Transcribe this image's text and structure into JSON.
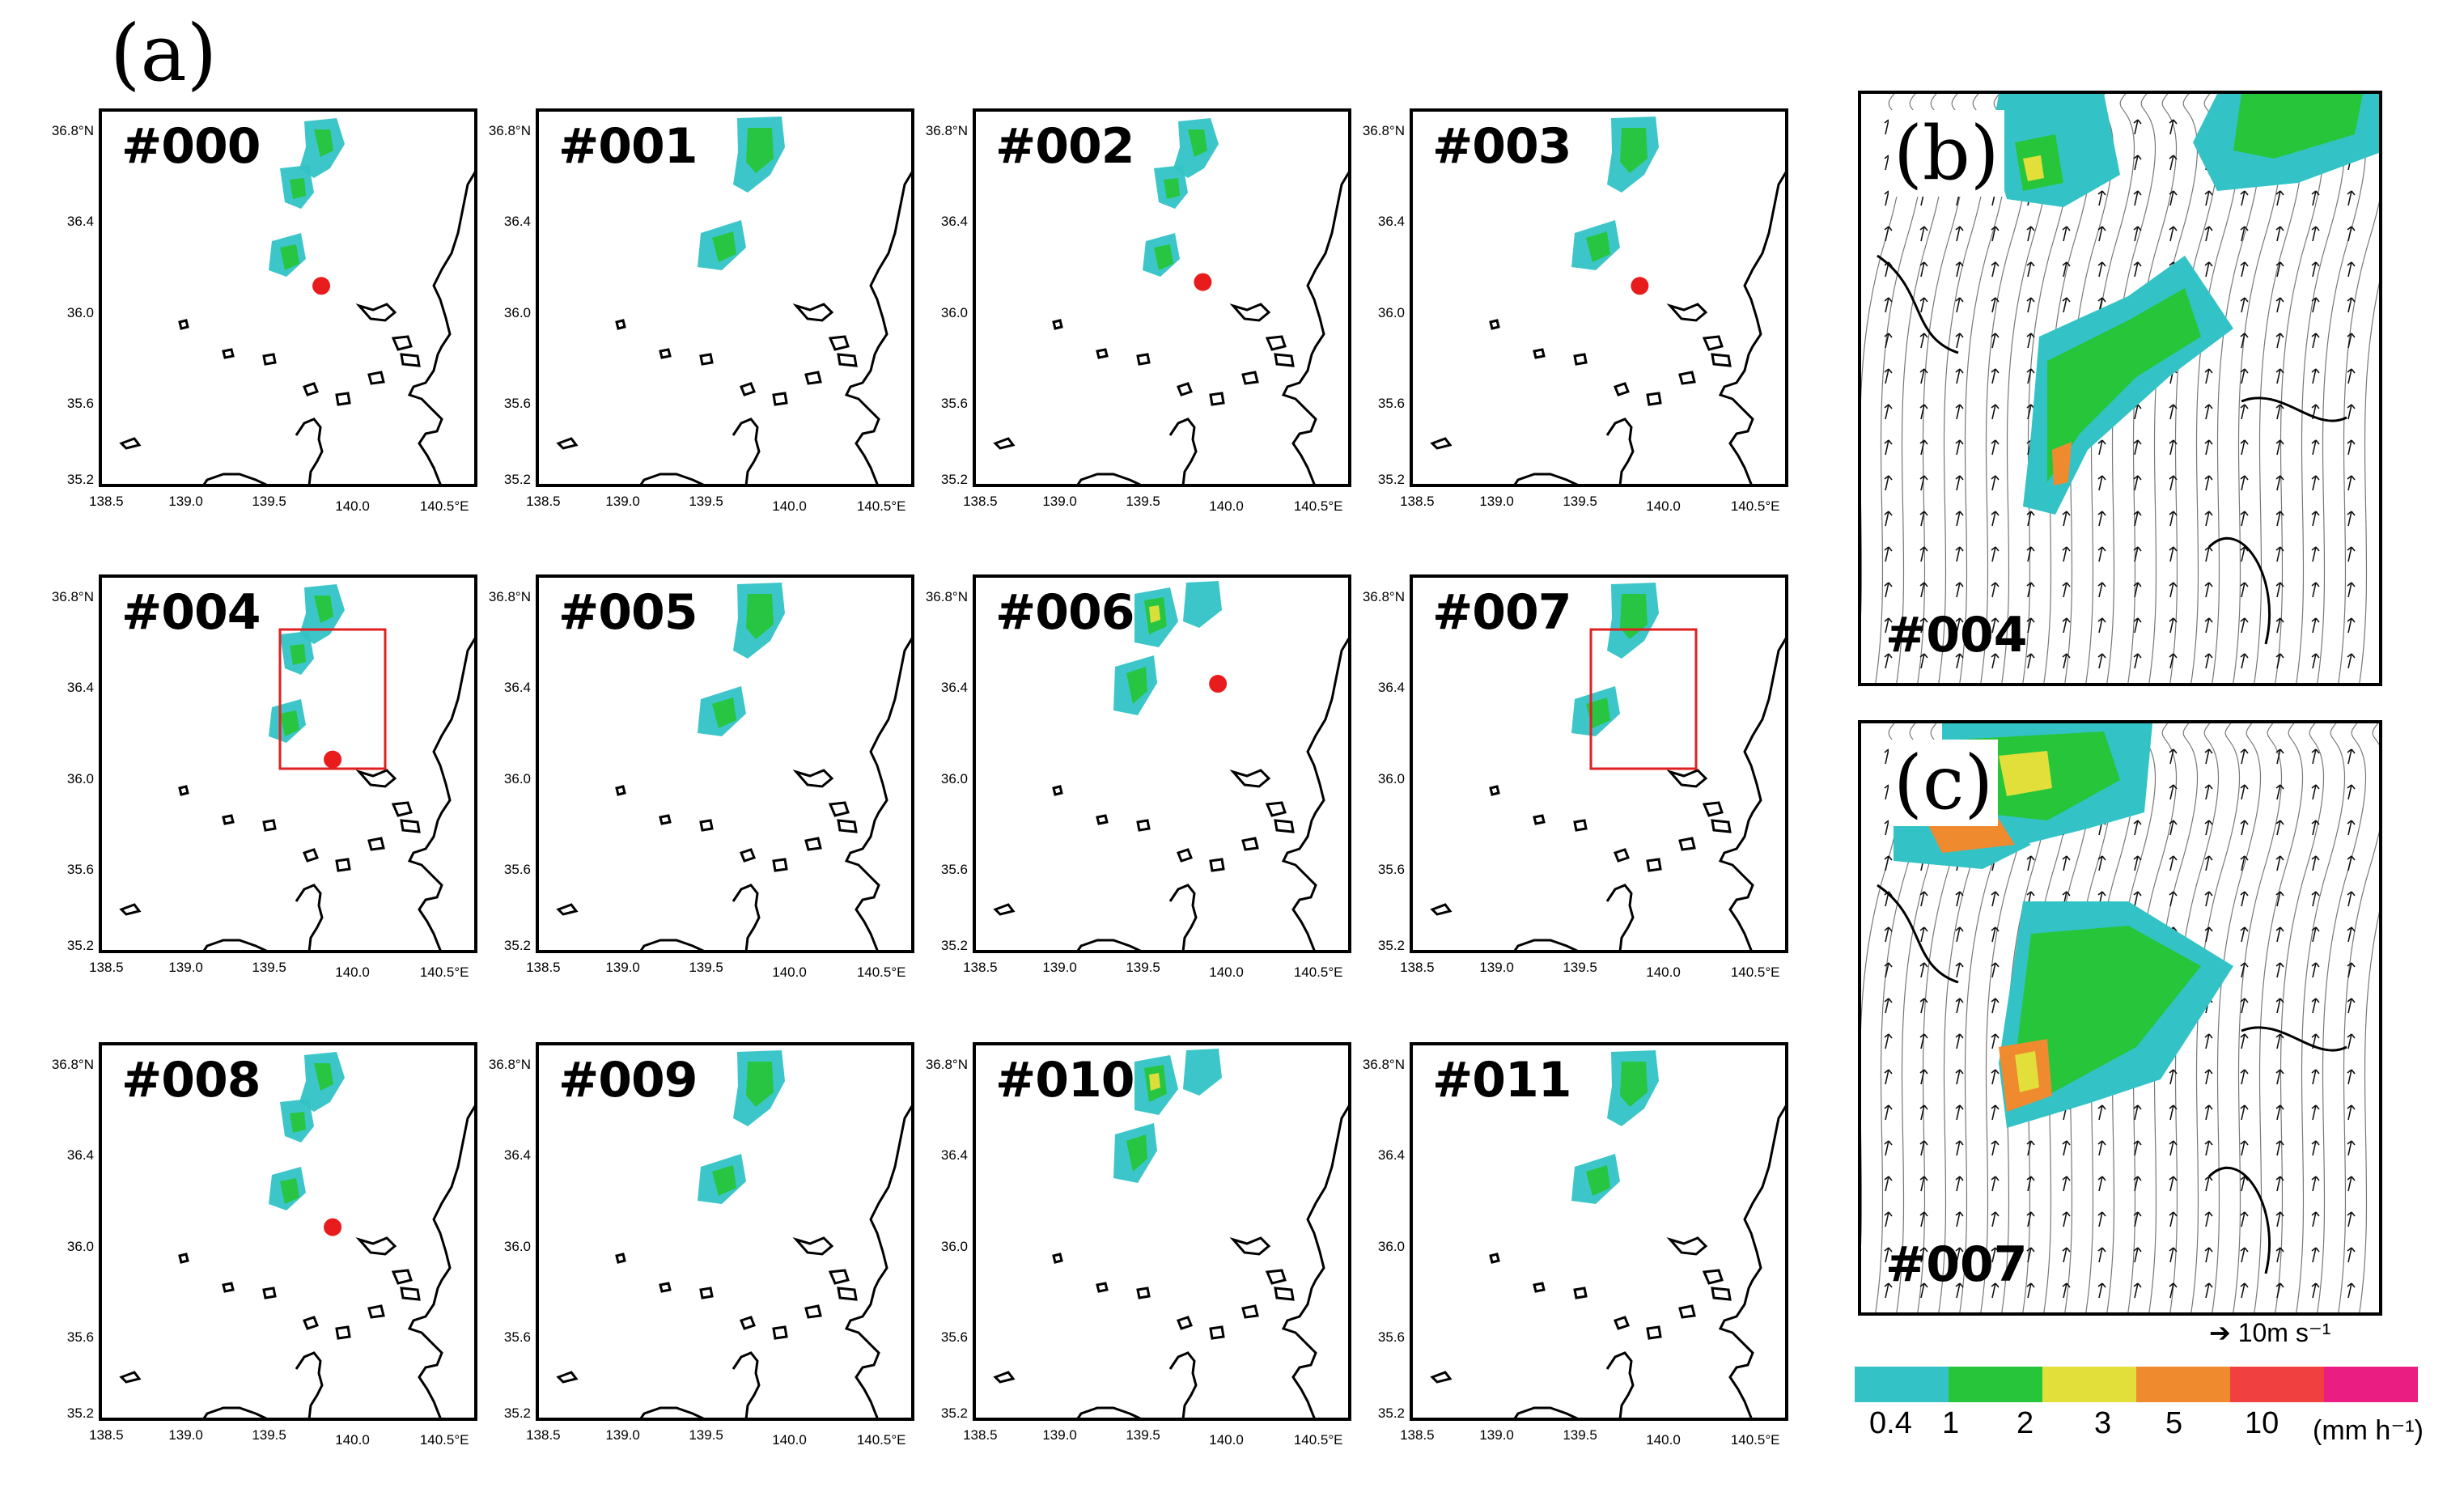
{
  "figure_labels": {
    "a": "(a)",
    "b": "(b)",
    "c": "(c)"
  },
  "lat_ticks": [
    "36.8°N",
    "36.4",
    "36.0",
    "35.6",
    "35.2"
  ],
  "lon_ticks": [
    "138.5",
    "139.0",
    "139.5",
    "140.0",
    "140.5°E"
  ],
  "members": [
    {
      "label": "#000",
      "marker": "dot",
      "dot": [
        0.28,
        0.46
      ],
      "rain": "a"
    },
    {
      "label": "#001",
      "marker": "none",
      "rain": "b"
    },
    {
      "label": "#002",
      "marker": "dot",
      "dot": [
        0.3,
        0.45
      ],
      "rain": "a"
    },
    {
      "label": "#003",
      "marker": "dot",
      "dot": [
        0.3,
        0.46
      ],
      "rain": "b"
    },
    {
      "label": "#004",
      "marker": "dot+box",
      "dot": [
        0.31,
        0.48
      ],
      "rain": "a"
    },
    {
      "label": "#005",
      "marker": "none",
      "rain": "b"
    },
    {
      "label": "#006",
      "marker": "dot",
      "dot": [
        0.34,
        0.28
      ],
      "rain": "c"
    },
    {
      "label": "#007",
      "marker": "box",
      "rain": "b"
    },
    {
      "label": "#008",
      "marker": "dot",
      "dot": [
        0.31,
        0.48
      ],
      "rain": "a"
    },
    {
      "label": "#009",
      "marker": "none",
      "rain": "b"
    },
    {
      "label": "#010",
      "marker": "none",
      "rain": "c"
    },
    {
      "label": "#011",
      "marker": "none",
      "rain": "b"
    }
  ],
  "panel_b": {
    "label": "#004"
  },
  "panel_c": {
    "label": "#007"
  },
  "vector_scale": "10m s⁻¹",
  "colorbar": {
    "colors": [
      "#33c3c6",
      "#26c53a",
      "#e3df3a",
      "#ef8a2f",
      "#f04040",
      "#ea1e82"
    ],
    "ticks": [
      "0.4",
      "1",
      "2",
      "3",
      "5",
      "10"
    ],
    "unit": "(mm h⁻¹)"
  }
}
